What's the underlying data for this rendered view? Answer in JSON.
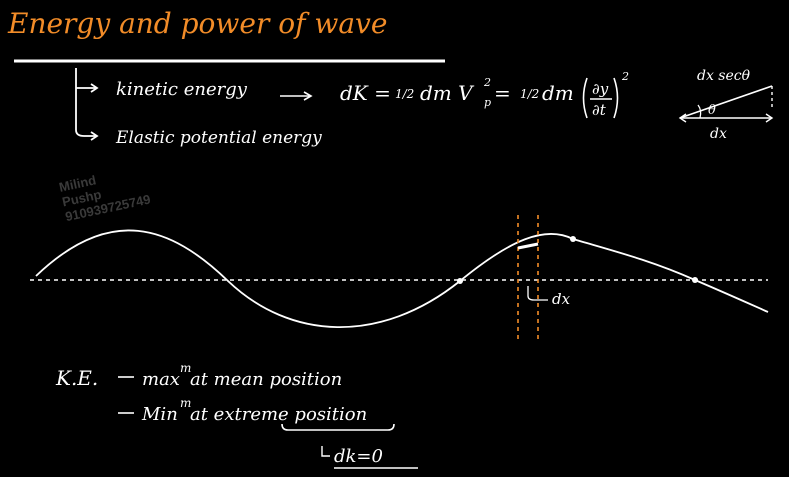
{
  "title": "Energy and power of wave",
  "energy_types": {
    "kinetic": "kinetic energy",
    "elastic": "Elastic potential energy"
  },
  "formula": {
    "lhs": "dK = ",
    "half": "1/2",
    "mid": " dm V",
    "sub_p": "p",
    "sq": "2",
    "eq2": " = ",
    "mid2": " dm",
    "dy": "∂y",
    "dt": "∂t"
  },
  "triangle": {
    "hyp": "dx secθ",
    "angle": "θ",
    "base": "dx"
  },
  "watermark": {
    "line1": "Milind",
    "line2": "Pushp",
    "line3": "910939725749"
  },
  "wave_label": "dx",
  "notes": {
    "ke": "K.E.",
    "line1": "max",
    "sup1": "m",
    "line1b": " at mean position",
    "line2": "Min",
    "sup2": "m",
    "line2b": " at extreme position",
    "conclusion": "dk=0"
  },
  "colors": {
    "accent": "#f28c28",
    "ink": "#ffffff",
    "background": "#000000"
  }
}
